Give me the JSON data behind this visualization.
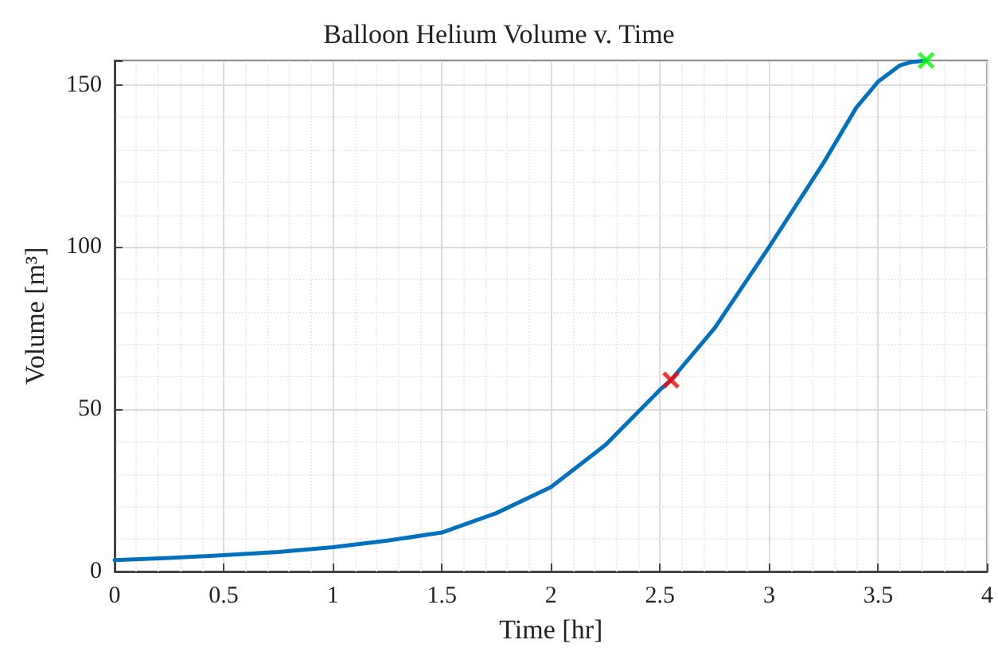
{
  "chart_data": {
    "type": "line",
    "title": "Balloon Helium Volume v. Time",
    "xlabel": "Time [hr]",
    "ylabel": "Volume [m³]",
    "xlim": [
      0,
      4
    ],
    "xticks": [
      0,
      0.5,
      1,
      1.5,
      2,
      2.5,
      3,
      3.5,
      4
    ],
    "ylim": [
      0,
      157.5
    ],
    "yticks": [
      0,
      50,
      100,
      150
    ],
    "grid": true,
    "marker": "none",
    "line_style": "solid",
    "series": [
      {
        "color": "#0072bd",
        "x": [
          0,
          0.25,
          0.5,
          0.75,
          1,
          1.25,
          1.5,
          1.75,
          2,
          2.25,
          2.5,
          2.55,
          2.75,
          3,
          3.25,
          3.4,
          3.5,
          3.6,
          3.65,
          3.72
        ],
        "values": [
          3.5,
          4.2,
          5,
          6,
          7.5,
          9.5,
          12,
          18,
          26,
          39,
          56,
          59,
          75,
          100,
          126,
          143,
          151,
          156,
          157,
          157.5
        ]
      },
      {
        "type": "scatter",
        "marker": "cross",
        "color": "#ff0000",
        "x": [
          2.55
        ],
        "values": [
          59
        ]
      },
      {
        "type": "scatter",
        "marker": "cross",
        "color": "#00ff00",
        "x": [
          3.72
        ],
        "values": [
          157.5
        ]
      }
    ]
  }
}
